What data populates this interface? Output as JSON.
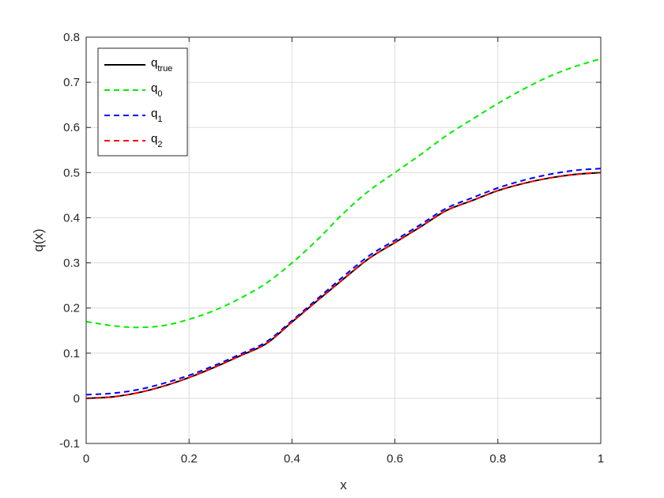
{
  "chart_data": {
    "type": "line",
    "title": "",
    "xlabel": "x",
    "ylabel": "q(x)",
    "xlim": [
      0,
      1
    ],
    "ylim": [
      -0.1,
      0.8
    ],
    "xticks": [
      0,
      0.2,
      0.4,
      0.6,
      0.8,
      1
    ],
    "xtick_labels": [
      "0",
      "0.2",
      "0.4",
      "0.6",
      "0.8",
      "1"
    ],
    "yticks": [
      -0.1,
      0,
      0.1,
      0.2,
      0.3,
      0.4,
      0.5,
      0.6,
      0.7,
      0.8
    ],
    "ytick_labels": [
      "-0.1",
      "0",
      "0.1",
      "0.2",
      "0.3",
      "0.4",
      "0.5",
      "0.6",
      "0.7",
      "0.8"
    ],
    "grid": true,
    "legend_position": "top-left",
    "x": [
      0,
      0.05,
      0.1,
      0.15,
      0.2,
      0.25,
      0.3,
      0.35,
      0.4,
      0.45,
      0.5,
      0.55,
      0.6,
      0.65,
      0.7,
      0.75,
      0.8,
      0.85,
      0.9,
      0.95,
      1
    ],
    "series": [
      {
        "name_main": "q",
        "name_sub": "true",
        "color": "#000000",
        "dash": "solid",
        "values": [
          0.0,
          0.0031,
          0.0122,
          0.0268,
          0.0461,
          0.069,
          0.0945,
          0.1212,
          0.169,
          0.217,
          0.2643,
          0.31,
          0.345,
          0.38,
          0.416,
          0.438,
          0.46,
          0.476,
          0.488,
          0.496,
          0.5
        ]
      },
      {
        "name_main": "q",
        "name_sub": "0",
        "color": "#00ee00",
        "dash": "dashed",
        "values": [
          0.17,
          0.161,
          0.157,
          0.161,
          0.175,
          0.195,
          0.222,
          0.255,
          0.3,
          0.352,
          0.41,
          0.46,
          0.5,
          0.54,
          0.582,
          0.618,
          0.653,
          0.685,
          0.713,
          0.735,
          0.752
        ]
      },
      {
        "name_main": "q",
        "name_sub": "1",
        "color": "#0000ff",
        "dash": "dashed",
        "values": [
          0.008,
          0.011,
          0.019,
          0.033,
          0.051,
          0.073,
          0.098,
          0.125,
          0.172,
          0.221,
          0.27,
          0.316,
          0.35,
          0.385,
          0.421,
          0.444,
          0.466,
          0.483,
          0.496,
          0.505,
          0.509
        ]
      },
      {
        "name_main": "q",
        "name_sub": "2",
        "color": "#ff0000",
        "dash": "dashed",
        "values": [
          0.0,
          0.0031,
          0.0122,
          0.0268,
          0.0461,
          0.069,
          0.0945,
          0.1212,
          0.169,
          0.217,
          0.2643,
          0.31,
          0.345,
          0.38,
          0.416,
          0.438,
          0.46,
          0.476,
          0.488,
          0.496,
          0.5
        ]
      }
    ]
  }
}
